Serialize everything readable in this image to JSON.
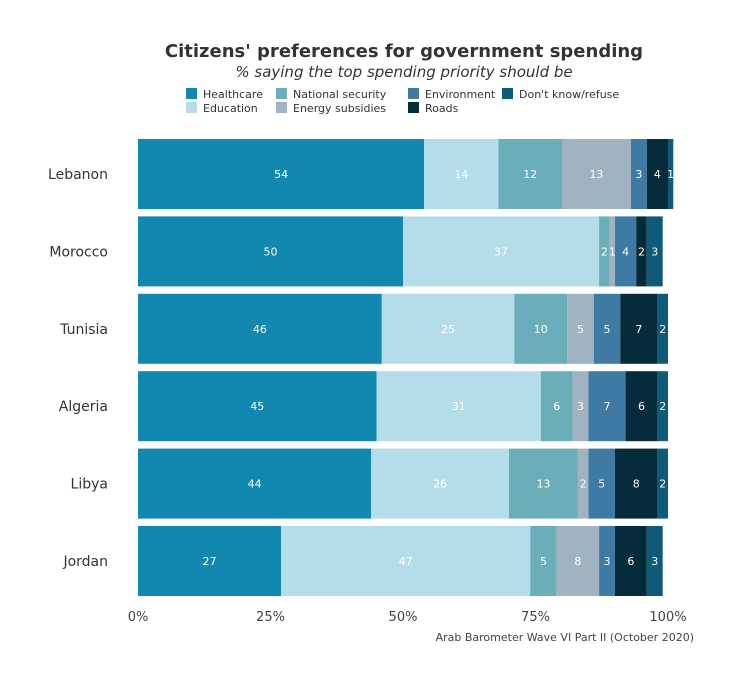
{
  "chart_data": {
    "type": "bar",
    "orientation": "horizontal",
    "stacked": true,
    "title": "Citizens' preferences for government spending",
    "subtitle": "% saying the top spending priority should be",
    "caption": "Arab Barometer Wave VI Part II (October 2020)",
    "categories": [
      "Lebanon",
      "Morocco",
      "Tunisia",
      "Algeria",
      "Libya",
      "Jordan"
    ],
    "xlim": [
      0,
      100
    ],
    "x_ticks": [
      "0%",
      "25%",
      "50%",
      "75%",
      "100%"
    ],
    "grid": false,
    "legend_position": "top",
    "series": [
      {
        "name": "Healthcare",
        "color": "#1287b0",
        "values": [
          54,
          50,
          46,
          45,
          44,
          27
        ]
      },
      {
        "name": "Education",
        "color": "#b4dde9",
        "values": [
          14,
          37,
          25,
          31,
          26,
          47
        ]
      },
      {
        "name": "National security",
        "color": "#6aaeb9",
        "values": [
          12,
          2,
          10,
          6,
          13,
          5
        ]
      },
      {
        "name": "Energy subsidies",
        "color": "#a1b2c1",
        "values": [
          13,
          1,
          5,
          3,
          2,
          8
        ]
      },
      {
        "name": "Environment",
        "color": "#3e7aa4",
        "values": [
          3,
          4,
          5,
          7,
          5,
          3
        ]
      },
      {
        "name": "Roads",
        "color": "#062b3a",
        "values": [
          4,
          2,
          7,
          6,
          8,
          6
        ]
      },
      {
        "name": "Don't know/refuse",
        "color": "#0e5a78",
        "values": [
          1,
          3,
          2,
          2,
          2,
          3
        ]
      }
    ]
  }
}
